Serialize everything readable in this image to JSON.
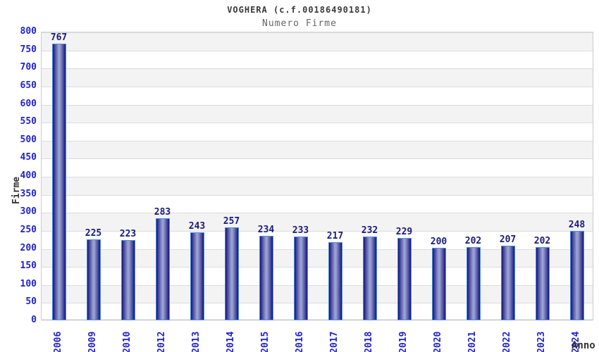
{
  "chart_data": {
    "type": "bar",
    "title": "VOGHERA (c.f.00186490181)",
    "subtitle": "Numero Firme",
    "xlabel": "Anno",
    "ylabel": "Firme",
    "categories": [
      "2006",
      "2009",
      "2010",
      "2012",
      "2013",
      "2014",
      "2015",
      "2016",
      "2017",
      "2018",
      "2019",
      "2020",
      "2021",
      "2022",
      "2023",
      "2024"
    ],
    "values": [
      767,
      225,
      223,
      283,
      243,
      257,
      234,
      233,
      217,
      232,
      229,
      200,
      202,
      207,
      202,
      248
    ],
    "ylim": [
      0,
      800
    ],
    "ytick_step": 50,
    "grid": "horizontal gridlines with alternating gray/white bands, gray band at top (800-750)",
    "legend": "none",
    "bar_value_labels": "shown above each bar",
    "colors": {
      "band_gray": "#f3f3f3",
      "band_white": "#ffffff",
      "gridline": "#dcdcdc",
      "plot_border": "#cccccc",
      "axis_line": "#b0b0b0",
      "bar_edge": "#14147a",
      "bar_mid": "#4a4fa0",
      "bar_center": "#9aa0d2",
      "bar_border": "#4d8fe0",
      "tick_label_blue": "#2222cc",
      "value_label_navy": "#1a1a7d",
      "title_color": "#3a3a3a",
      "subtitle_color": "#666666",
      "axis_title_color": "#333333"
    }
  }
}
